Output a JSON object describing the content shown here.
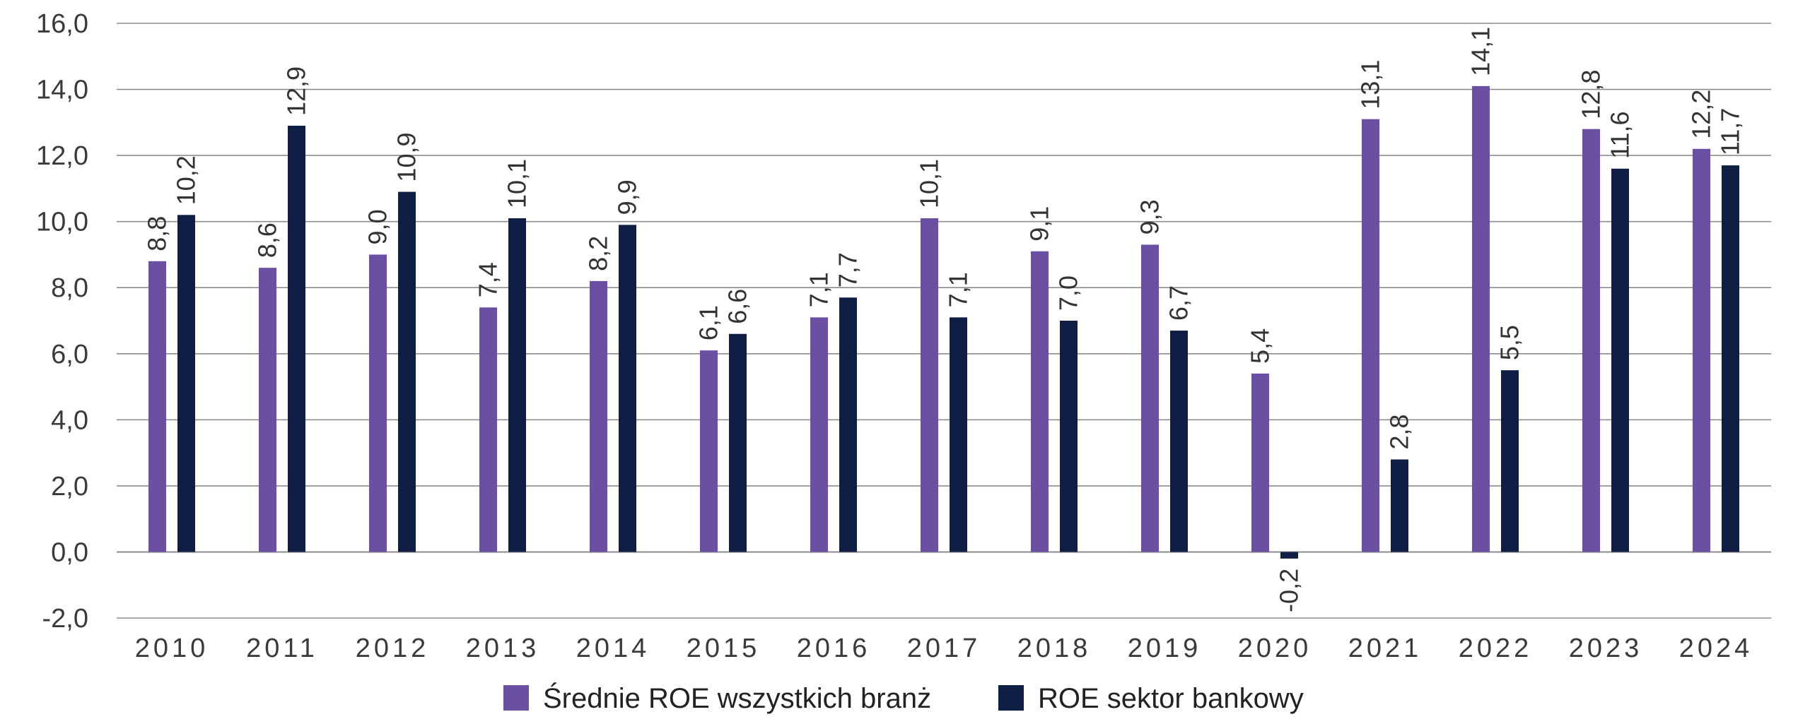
{
  "chart_data": {
    "type": "bar",
    "title": "",
    "xlabel": "",
    "ylabel": "",
    "ylim": [
      -2.0,
      16.0
    ],
    "yticks": [
      "-2,0",
      "0,0",
      "2,0",
      "4,0",
      "6,0",
      "8,0",
      "10,0",
      "12,0",
      "14,0",
      "16,0"
    ],
    "ytick_values": [
      -2,
      0,
      2,
      4,
      6,
      8,
      10,
      12,
      14,
      16
    ],
    "grid": true,
    "legend_position": "bottom",
    "categories": [
      "2010",
      "2011",
      "2012",
      "2013",
      "2014",
      "2015",
      "2016",
      "2017",
      "2018",
      "2019",
      "2020",
      "2021",
      "2022",
      "2023",
      "2024"
    ],
    "series": [
      {
        "name": "Średnie ROE wszystkich branż",
        "color": "#6b4fa3",
        "values": [
          8.8,
          8.6,
          9.0,
          7.4,
          8.2,
          6.1,
          7.1,
          10.1,
          9.1,
          9.3,
          5.4,
          13.1,
          14.1,
          12.8,
          12.2
        ],
        "labels": [
          "8,8",
          "8,6",
          "9,0",
          "7,4",
          "8,2",
          "6,1",
          "7,1",
          "10,1",
          "9,1",
          "9,3",
          "5,4",
          "13,1",
          "14,1",
          "12,8",
          "12,2"
        ]
      },
      {
        "name": "ROE sektor bankowy",
        "color": "#0f1e45",
        "values": [
          10.2,
          12.9,
          10.9,
          10.1,
          9.9,
          6.6,
          7.7,
          7.1,
          7.0,
          6.7,
          -0.2,
          2.8,
          5.5,
          11.6,
          11.7
        ],
        "labels": [
          "10,2",
          "12,9",
          "10,9",
          "10,1",
          "9,9",
          "6,6",
          "7,7",
          "7,1",
          "7,0",
          "6,7",
          "-0,2",
          "2,8",
          "5,5",
          "11,6",
          "11,7"
        ]
      }
    ]
  }
}
